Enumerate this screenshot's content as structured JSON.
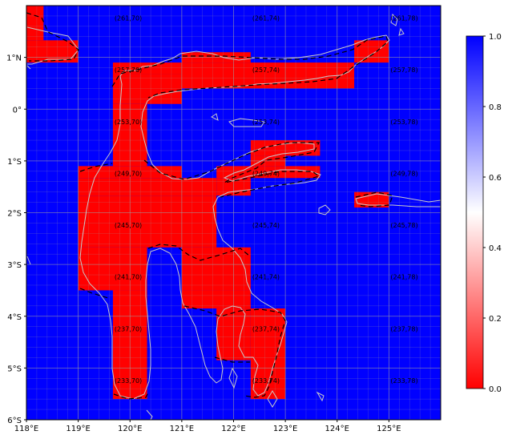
{
  "map": {
    "lon_ticks": [
      {
        "lon": 118,
        "label": "118°E"
      },
      {
        "lon": 119,
        "label": "119°E"
      },
      {
        "lon": 120,
        "label": "120°E"
      },
      {
        "lon": 121,
        "label": "121°E"
      },
      {
        "lon": 122,
        "label": "122°E"
      },
      {
        "lon": 123,
        "label": "123°E"
      },
      {
        "lon": 124,
        "label": "124°E"
      },
      {
        "lon": 125,
        "label": "125°E"
      }
    ],
    "lat_ticks": [
      {
        "lat": 1,
        "label": "1°N"
      },
      {
        "lat": 0,
        "label": "0°"
      },
      {
        "lat": -1,
        "label": "1°S"
      },
      {
        "lat": -2,
        "label": "2°S"
      },
      {
        "lat": -3,
        "label": "3°S"
      },
      {
        "lat": -4,
        "label": "4°S"
      },
      {
        "lat": -5,
        "label": "5°S"
      },
      {
        "lat": -6,
        "label": "6°S"
      }
    ],
    "extent": {
      "lon_min": 118,
      "lon_max": 126,
      "lat_min": -6,
      "lat_max": 2
    },
    "colors": {
      "land_cells": "#ff0000",
      "ocean_cells": "#0000ff",
      "coastline": "#c0c0c0",
      "contour": "#000000",
      "grid": "#a0a0a0"
    },
    "red_cells": [
      {
        "lon0": 118.0,
        "lon1": 118.33,
        "lat0": 1.33,
        "lat1": 2.0
      },
      {
        "lon0": 118.0,
        "lon1": 119.0,
        "lat0": 0.9,
        "lat1": 1.33
      },
      {
        "lon0": 124.33,
        "lon1": 125.0,
        "lat0": 0.9,
        "lat1": 1.33
      },
      {
        "lon0": 121.0,
        "lon1": 122.33,
        "lat0": 0.9,
        "lat1": 1.1
      },
      {
        "lon0": 119.67,
        "lon1": 121.0,
        "lat0": 0.67,
        "lat1": 0.9
      },
      {
        "lon0": 121.0,
        "lon1": 124.33,
        "lat0": 0.4,
        "lat1": 0.9
      },
      {
        "lon0": 119.67,
        "lon1": 121.0,
        "lat0": 0.1,
        "lat1": 0.67
      },
      {
        "lon0": 119.67,
        "lon1": 120.33,
        "lat0": -1.1,
        "lat1": 0.1
      },
      {
        "lon0": 122.33,
        "lon1": 123.67,
        "lat0": -0.9,
        "lat1": -0.6
      },
      {
        "lon0": 122.33,
        "lon1": 123.0,
        "lat0": -1.1,
        "lat1": -0.9
      },
      {
        "lon0": 119.0,
        "lon1": 121.0,
        "lat0": -1.33,
        "lat1": -1.1
      },
      {
        "lon0": 121.67,
        "lon1": 123.67,
        "lat0": -1.33,
        "lat1": -1.1
      },
      {
        "lon0": 119.0,
        "lon1": 121.67,
        "lat0": -1.67,
        "lat1": -1.33
      },
      {
        "lon0": 121.67,
        "lon1": 122.33,
        "lat0": -1.67,
        "lat1": -1.33
      },
      {
        "lon0": 124.33,
        "lon1": 125.0,
        "lat0": -1.9,
        "lat1": -1.6
      },
      {
        "lon0": 119.0,
        "lon1": 121.67,
        "lat0": -2.67,
        "lat1": -1.67
      },
      {
        "lon0": 119.0,
        "lon1": 120.33,
        "lat0": -3.5,
        "lat1": -2.67
      },
      {
        "lon0": 121.0,
        "lon1": 122.33,
        "lat0": -3.5,
        "lat1": -2.67
      },
      {
        "lon0": 119.67,
        "lon1": 120.33,
        "lat0": -5.6,
        "lat1": -3.5
      },
      {
        "lon0": 121.0,
        "lon1": 122.33,
        "lat0": -3.85,
        "lat1": -3.5
      },
      {
        "lon0": 121.67,
        "lon1": 122.33,
        "lat0": -4.85,
        "lat1": -3.85
      },
      {
        "lon0": 122.33,
        "lon1": 123.0,
        "lat0": -5.6,
        "lat1": -3.85
      }
    ],
    "cell_labels": [
      {
        "lon": 119.67,
        "lat": 1.76,
        "text": "(261,70)"
      },
      {
        "lon": 122.33,
        "lat": 1.76,
        "text": "(261,74)"
      },
      {
        "lon": 125.0,
        "lat": 1.76,
        "text": "(261,78)"
      },
      {
        "lon": 119.67,
        "lat": 0.76,
        "text": "(257,70)"
      },
      {
        "lon": 122.33,
        "lat": 0.76,
        "text": "(257,74)"
      },
      {
        "lon": 125.0,
        "lat": 0.76,
        "text": "(257,78)"
      },
      {
        "lon": 119.67,
        "lat": -0.24,
        "text": "(253,70)"
      },
      {
        "lon": 122.33,
        "lat": -0.24,
        "text": "(253,74)"
      },
      {
        "lon": 125.0,
        "lat": -0.24,
        "text": "(253,78)"
      },
      {
        "lon": 119.67,
        "lat": -1.24,
        "text": "(249,70)"
      },
      {
        "lon": 122.33,
        "lat": -1.24,
        "text": "(249,74)"
      },
      {
        "lon": 125.0,
        "lat": -1.24,
        "text": "(249,78)"
      },
      {
        "lon": 119.67,
        "lat": -2.24,
        "text": "(245,70)"
      },
      {
        "lon": 122.33,
        "lat": -2.24,
        "text": "(245,74)"
      },
      {
        "lon": 125.0,
        "lat": -2.24,
        "text": "(245,78)"
      },
      {
        "lon": 119.67,
        "lat": -3.24,
        "text": "(241,70)"
      },
      {
        "lon": 122.33,
        "lat": -3.24,
        "text": "(241,74)"
      },
      {
        "lon": 125.0,
        "lat": -3.24,
        "text": "(241,78)"
      },
      {
        "lon": 119.67,
        "lat": -4.24,
        "text": "(237,70)"
      },
      {
        "lon": 122.33,
        "lat": -4.24,
        "text": "(237,74)"
      },
      {
        "lon": 125.0,
        "lat": -4.24,
        "text": "(237,78)"
      },
      {
        "lon": 119.67,
        "lat": -5.24,
        "text": "(233,70)"
      },
      {
        "lon": 122.33,
        "lat": -5.24,
        "text": "(233,74)"
      },
      {
        "lon": 125.0,
        "lat": -5.24,
        "text": "(233,78)"
      }
    ]
  },
  "colorbar": {
    "min": 0.0,
    "max": 1.0,
    "ticks": [
      {
        "value": 0.0,
        "label": "0.0"
      },
      {
        "value": 0.2,
        "label": "0.2"
      },
      {
        "value": 0.4,
        "label": "0.4"
      },
      {
        "value": 0.6,
        "label": "0.6"
      },
      {
        "value": 0.8,
        "label": "0.8"
      },
      {
        "value": 1.0,
        "label": "1.0"
      }
    ],
    "colors": {
      "low": "#ff0000",
      "mid": "#ffffff",
      "high": "#0000ff"
    }
  }
}
